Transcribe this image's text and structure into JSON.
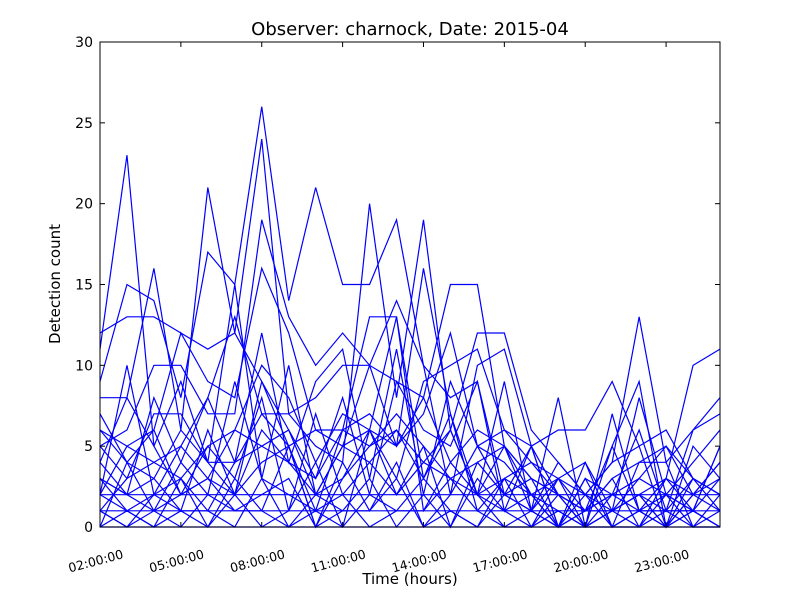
{
  "chart_data": {
    "type": "line",
    "title": "Observer: charnock, Date: 2015-04",
    "xlabel": "Time (hours)",
    "ylabel": "Detection count",
    "x": [
      "02:00:00",
      "03:00:00",
      "04:00:00",
      "05:00:00",
      "06:00:00",
      "07:00:00",
      "08:00:00",
      "09:00:00",
      "10:00:00",
      "11:00:00",
      "12:00:00",
      "13:00:00",
      "14:00:00",
      "15:00:00",
      "16:00:00",
      "17:00:00",
      "18:00:00",
      "19:00:00",
      "20:00:00",
      "21:00:00",
      "22:00:00",
      "23:00:00",
      "00:00:00",
      "01:00:00"
    ],
    "xticks": [
      "02:00:00",
      "05:00:00",
      "08:00:00",
      "11:00:00",
      "14:00:00",
      "17:00:00",
      "20:00:00",
      "23:00:00"
    ],
    "ylim": [
      0,
      30
    ],
    "yticks": [
      "0",
      "5",
      "10",
      "15",
      "20",
      "25",
      "30"
    ],
    "line_color": "#0000ff",
    "grid": false,
    "series": [
      {
        "values": [
          11,
          23,
          5,
          9,
          4,
          15,
          3,
          10,
          2,
          3,
          6,
          13,
          1,
          3,
          2,
          1,
          0,
          1,
          0,
          2,
          1,
          0,
          2,
          1
        ]
      },
      {
        "values": [
          4,
          8,
          16,
          6,
          21,
          12,
          24,
          7,
          5,
          4,
          20,
          8,
          19,
          6,
          2,
          9,
          1,
          3,
          0,
          1,
          2,
          0,
          1,
          0
        ]
      },
      {
        "values": [
          12,
          13,
          13,
          12,
          11,
          12,
          9,
          5,
          1,
          6,
          7,
          5,
          16,
          7,
          2,
          5,
          3,
          0,
          4,
          1,
          0,
          2,
          1,
          0
        ]
      },
      {
        "values": [
          9,
          15,
          14,
          8,
          17,
          15,
          26,
          14,
          21,
          15,
          15,
          19,
          10,
          8,
          9,
          2,
          5,
          2,
          1,
          5,
          9,
          0,
          3,
          2
        ]
      },
      {
        "values": [
          5,
          6,
          10,
          10,
          7,
          7,
          19,
          13,
          10,
          12,
          10,
          9,
          8,
          15,
          15,
          5,
          1,
          8,
          0,
          7,
          1,
          3,
          10,
          11
        ]
      },
      {
        "values": [
          6,
          4,
          6,
          12,
          9,
          8,
          16,
          12,
          6,
          6,
          13,
          13,
          3,
          6,
          12,
          12,
          6,
          4,
          2,
          4,
          13,
          4,
          6,
          8
        ]
      },
      {
        "values": [
          3,
          2,
          8,
          4,
          8,
          13,
          7,
          7,
          8,
          10,
          10,
          14,
          10,
          2,
          10,
          11,
          5,
          6,
          6,
          9,
          5,
          0,
          1,
          5
        ]
      },
      {
        "values": [
          2,
          10,
          2,
          5,
          8,
          4,
          12,
          4,
          9,
          11,
          3,
          11,
          2,
          9,
          5,
          4,
          2,
          0,
          2,
          1,
          8,
          2,
          1,
          3
        ]
      },
      {
        "values": [
          8,
          8,
          5,
          2,
          3,
          6,
          10,
          8,
          4,
          7,
          6,
          3,
          9,
          10,
          11,
          6,
          5,
          0,
          3,
          2,
          6,
          1,
          6,
          7
        ]
      },
      {
        "values": [
          1,
          3,
          7,
          7,
          4,
          2,
          9,
          6,
          2,
          5,
          10,
          5,
          7,
          12,
          5,
          6,
          4,
          3,
          2,
          4,
          5,
          6,
          3,
          1
        ]
      },
      {
        "values": [
          3,
          1,
          2,
          3,
          1,
          4,
          5,
          4,
          3,
          8,
          2,
          9,
          6,
          5,
          9,
          1,
          5,
          0,
          1,
          2,
          3,
          2,
          4,
          6
        ]
      },
      {
        "values": [
          2,
          5,
          6,
          2,
          5,
          3,
          8,
          1,
          7,
          2,
          4,
          6,
          3,
          7,
          1,
          3,
          0,
          3,
          4,
          0,
          4,
          4,
          0,
          2
        ]
      },
      {
        "values": [
          4,
          2,
          3,
          1,
          6,
          2,
          4,
          5,
          0,
          3,
          5,
          7,
          5,
          0,
          4,
          2,
          3,
          2,
          0,
          5,
          1,
          0,
          5,
          3
        ]
      },
      {
        "values": [
          1,
          0,
          1,
          4,
          2,
          9,
          3,
          2,
          1,
          0,
          6,
          2,
          4,
          3,
          1,
          0,
          1,
          4,
          2,
          0,
          0,
          3,
          2,
          4
        ]
      },
      {
        "values": [
          0,
          4,
          1,
          2,
          3,
          1,
          2,
          3,
          0,
          4,
          1,
          3,
          0,
          2,
          5,
          2,
          1,
          0,
          1,
          1,
          2,
          1,
          3,
          2
        ]
      },
      {
        "values": [
          2,
          1,
          0,
          3,
          0,
          2,
          0,
          1,
          4,
          0,
          2,
          1,
          3,
          1,
          0,
          3,
          2,
          1,
          0,
          0,
          1,
          2,
          0,
          1
        ]
      },
      {
        "values": [
          1,
          0,
          2,
          1,
          1,
          0,
          3,
          0,
          1,
          2,
          0,
          1,
          1,
          4,
          2,
          0,
          0,
          2,
          1,
          3,
          0,
          1,
          1,
          0
        ]
      },
      {
        "values": [
          3,
          2,
          1,
          0,
          2,
          1,
          1,
          5,
          0,
          1,
          3,
          0,
          2,
          0,
          3,
          1,
          2,
          0,
          0,
          1,
          2,
          0,
          2,
          3
        ]
      },
      {
        "values": [
          0,
          1,
          0,
          1,
          0,
          3,
          1,
          0,
          2,
          1,
          1,
          4,
          0,
          1,
          0,
          2,
          1,
          0,
          3,
          0,
          1,
          1,
          0,
          0
        ]
      },
      {
        "values": [
          1,
          1,
          1,
          1,
          1,
          1,
          1,
          1,
          1,
          1,
          1,
          1,
          1,
          1,
          1,
          1,
          1,
          1,
          1,
          1,
          1,
          1,
          1,
          1
        ]
      },
      {
        "values": [
          0,
          0,
          0,
          0,
          0,
          0,
          0,
          0,
          0,
          0,
          0,
          0,
          0,
          0,
          0,
          0,
          0,
          0,
          0,
          0,
          0,
          0,
          0,
          0
        ]
      },
      {
        "values": [
          2,
          2,
          2,
          2,
          2,
          2,
          2,
          2,
          2,
          2,
          2,
          2,
          2,
          2,
          2,
          2,
          2,
          2,
          2,
          2,
          2,
          2,
          2,
          2
        ]
      },
      {
        "values": [
          5,
          3,
          4,
          5,
          3,
          2,
          6,
          4,
          2,
          5,
          4,
          2,
          5,
          3,
          4,
          5,
          3,
          2,
          0,
          1,
          3,
          5,
          2,
          4
        ]
      },
      {
        "values": [
          6,
          5,
          4,
          3,
          5,
          6,
          5,
          6,
          3,
          6,
          5,
          6,
          4,
          6,
          2,
          3,
          4,
          2,
          1,
          2,
          2,
          3,
          1,
          5
        ]
      },
      {
        "values": [
          7,
          4,
          3,
          6,
          4,
          4,
          7,
          5,
          6,
          5,
          6,
          5,
          8,
          4,
          6,
          5,
          2,
          3,
          1,
          3,
          4,
          5,
          3,
          2
        ]
      }
    ]
  }
}
